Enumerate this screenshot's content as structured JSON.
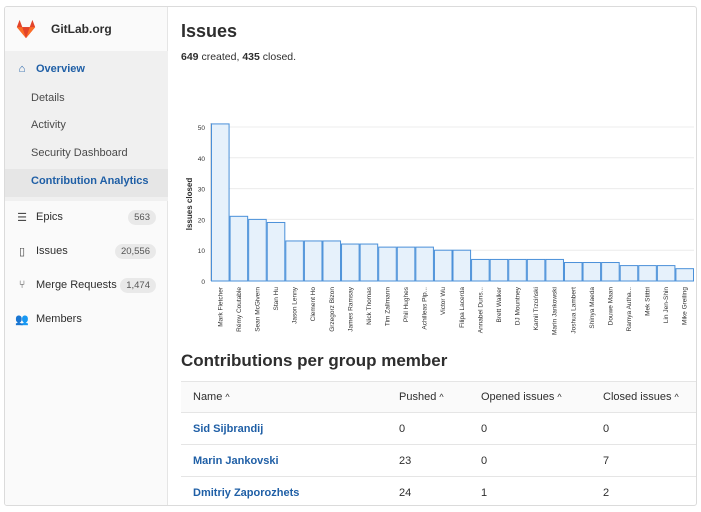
{
  "brand": {
    "name": "GitLab.org",
    "logo_icon": "gitlab-tanuki-icon",
    "logo_color": "#e24329"
  },
  "sidebar": {
    "overview": {
      "label": "Overview",
      "icon": "home-icon"
    },
    "overview_subitems": [
      {
        "label": "Details"
      },
      {
        "label": "Activity"
      },
      {
        "label": "Security Dashboard"
      },
      {
        "label": "Contribution Analytics",
        "active": true
      }
    ],
    "items": [
      {
        "label": "Epics",
        "icon": "epic-icon",
        "count": "563"
      },
      {
        "label": "Issues",
        "icon": "issues-icon",
        "count": "20,556"
      },
      {
        "label": "Merge Requests",
        "icon": "merge-request-icon",
        "count": "1,474"
      },
      {
        "label": "Members",
        "icon": "users-icon"
      }
    ]
  },
  "main": {
    "title": "Issues",
    "summary": {
      "created": "649",
      "created_label": "created,",
      "closed": "435",
      "closed_label": "closed."
    },
    "section2_title": "Contributions per group member",
    "table": {
      "headers": [
        "Name",
        "Pushed",
        "Opened issues",
        "Closed issues"
      ],
      "sort_glyph": "^",
      "rows": [
        {
          "name": "Sid Sijbrandij",
          "pushed": "0",
          "opened": "0",
          "closed": "0"
        },
        {
          "name": "Marin Jankovski",
          "pushed": "23",
          "opened": "0",
          "closed": "7"
        },
        {
          "name": "Dmitriy Zaporozhets",
          "pushed": "24",
          "opened": "1",
          "closed": "2"
        }
      ]
    }
  },
  "colors": {
    "accent": "#1f5fa6",
    "bar_fill": "#e6f1fb",
    "bar_stroke": "#4a90d9"
  },
  "chart_data": {
    "type": "bar",
    "ylabel": "Issues closed",
    "ylim": [
      0,
      50
    ],
    "yticks": [
      0,
      10,
      20,
      30,
      40,
      50
    ],
    "grid": true,
    "categories": [
      "Mark Fletcher",
      "Rémy Coutable",
      "Sean McGivern",
      "Stan Hu",
      "Jason Lenny",
      "Clement Ho",
      "Grzegorz Bizon",
      "James Ramsay",
      "Nick Thomas",
      "Tim Zallmann",
      "Phil Hughes",
      "Achilleas Pip...",
      "Victor Wu",
      "Filipa Lacerda",
      "Annabel Duns...",
      "Brett Walker",
      "DJ Mountney",
      "Kamil Trzciński",
      "Marin Jankowski",
      "Joshua Lambert",
      "Shinya Maeda",
      "Douwe Maan",
      "Ramya Autha...",
      "Mek Stittri",
      "Lin Jen-Shin",
      "Mike Greiling"
    ],
    "values": [
      51,
      21,
      20,
      19,
      13,
      13,
      13,
      12,
      12,
      11,
      11,
      11,
      10,
      10,
      7,
      7,
      7,
      7,
      7,
      6,
      6,
      6,
      5,
      5,
      5,
      4
    ]
  }
}
